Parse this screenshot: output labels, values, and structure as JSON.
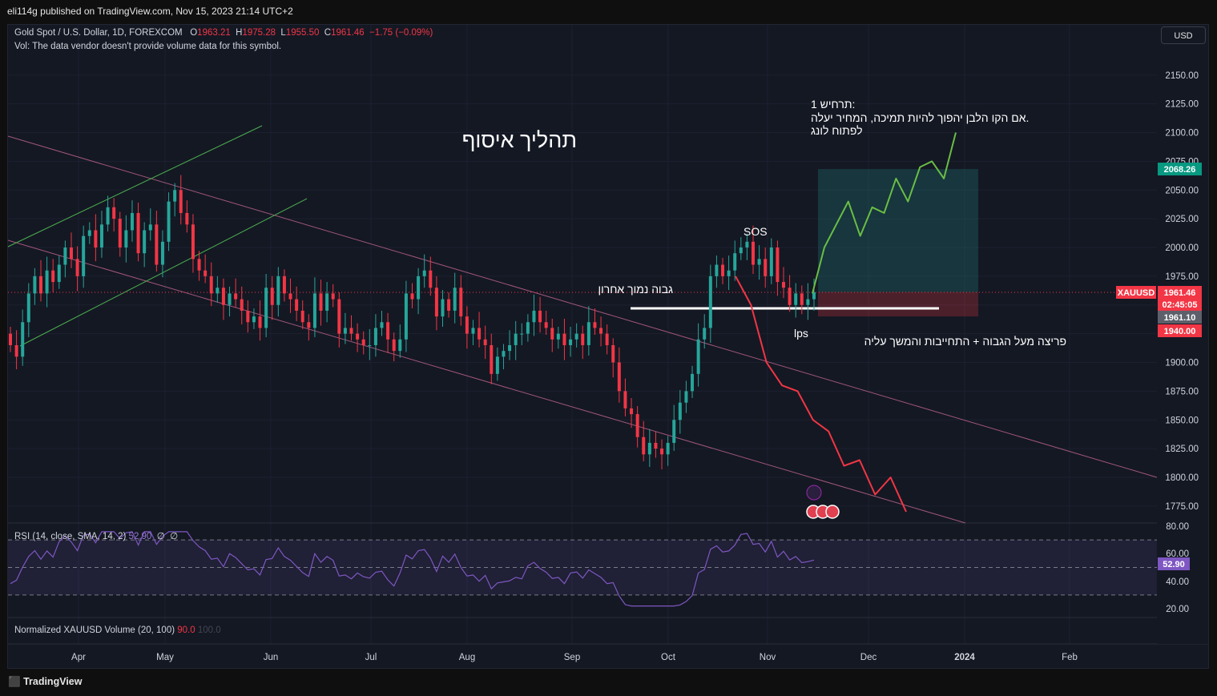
{
  "publisher": "eli114g published on TradingView.com, Nov 15, 2023 21:14 UTC+2",
  "legend": {
    "symbol": "Gold Spot / U.S. Dollar, 1D, FOREXCOM",
    "o_label": "O",
    "o_val": "1963.21",
    "h_label": "H",
    "h_val": "1975.28",
    "l_label": "L",
    "l_val": "1955.50",
    "c_label": "C",
    "c_val": "1961.46",
    "change": "−1.75 (−0.09%)"
  },
  "vol_note": "Vol: The data vendor doesn't provide volume data for this symbol.",
  "currency_button": "USD",
  "brand": "TradingView",
  "annotations": {
    "title": "תהליך איסוף",
    "scenario_line1": "תרחיש 1:",
    "scenario_line2": "אם הקו הלבן יהפוך להיות תמיכה, המחיר יעלה.",
    "scenario_line3": "לפתוח לונג",
    "sos": "SOS",
    "lps": "lps",
    "last_low_high": "גבוה נמוך אחרון",
    "breakout": "פריצה מעל הגבוה + התחייבות והמשך עליה"
  },
  "price_tags": {
    "symbol": "XAUUSD",
    "last": "1961.46",
    "countdown": "02:45:05",
    "target": "2068.26",
    "entry": "1961.10",
    "stop": "1940.00"
  },
  "rsi_legend": {
    "label": "RSI (14, close, SMA, 14, 2)",
    "value": "52.90",
    "extra1": "∅",
    "extra2": "∅",
    "tag": "52.90"
  },
  "vol_indicator": {
    "label": "Normalized XAUUSD Volume (20, 100)",
    "v1": "90.0",
    "v2": "100.0"
  },
  "colors": {
    "up": "#26a69a",
    "down": "#f23645",
    "green_path": "#6abe45",
    "red_path": "#f23645",
    "rsi": "#7e57c2"
  },
  "chart_data": {
    "type": "candlestick",
    "title": "Gold Spot / U.S. Dollar, 1D, FOREXCOM",
    "x_ticks": [
      "Apr",
      "May",
      "Jun",
      "Jul",
      "Aug",
      "Sep",
      "Oct",
      "Nov",
      "Dec",
      "2024",
      "Feb"
    ],
    "y_ticks": [
      1775,
      1800,
      1825,
      1850,
      1875,
      1900,
      1925,
      1950,
      1975,
      2000,
      2025,
      2050,
      2075,
      2100,
      2125,
      2150
    ],
    "ylim": [
      1765,
      2178
    ],
    "series_close": [
      1915,
      1905,
      1935,
      1960,
      1975,
      1960,
      1980,
      1970,
      1985,
      2000,
      1990,
      1975,
      2010,
      2015,
      2000,
      2020,
      2035,
      2025,
      2000,
      2015,
      2030,
      1995,
      2015,
      2020,
      1985,
      2005,
      2040,
      2050,
      2030,
      2020,
      1990,
      1980,
      1975,
      1960,
      1965,
      1950,
      1960,
      1955,
      1945,
      1935,
      1940,
      1930,
      1965,
      1950,
      1975,
      1960,
      1955,
      1945,
      1935,
      1930,
      1960,
      1945,
      1960,
      1955,
      1925,
      1930,
      1925,
      1920,
      1915,
      1915,
      1930,
      1935,
      1920,
      1910,
      1920,
      1960,
      1955,
      1975,
      1980,
      1965,
      1940,
      1955,
      1945,
      1965,
      1940,
      1925,
      1930,
      1920,
      1915,
      1890,
      1905,
      1910,
      1915,
      1925,
      1925,
      1935,
      1945,
      1935,
      1930,
      1920,
      1925,
      1915,
      1920,
      1925,
      1915,
      1935,
      1930,
      1925,
      1915,
      1900,
      1875,
      1860,
      1855,
      1835,
      1820,
      1830,
      1825,
      1820,
      1830,
      1850,
      1865,
      1875,
      1890,
      1920,
      1930,
      1975,
      1985,
      1975,
      1980,
      1995,
      2000,
      2005,
      1985,
      1990,
      1975,
      2000,
      1970,
      1965,
      1950,
      1960,
      1950,
      1955,
      1961
    ],
    "rsi_range": [
      10,
      85
    ],
    "rsi_levels": [
      70,
      50,
      30
    ],
    "rsi_last": 52.9,
    "projection_green": [
      1960,
      2000,
      2020,
      2040,
      2010,
      2035,
      2030,
      2060,
      2040,
      2070,
      2075,
      2060,
      2100
    ],
    "projection_red": [
      1975,
      1950,
      1900,
      1880,
      1875,
      1850,
      1840,
      1810,
      1815,
      1785,
      1800,
      1770
    ],
    "white_level": 1946,
    "long_target": 2068.26,
    "long_entry": 1961.1,
    "long_stop": 1940.0
  }
}
